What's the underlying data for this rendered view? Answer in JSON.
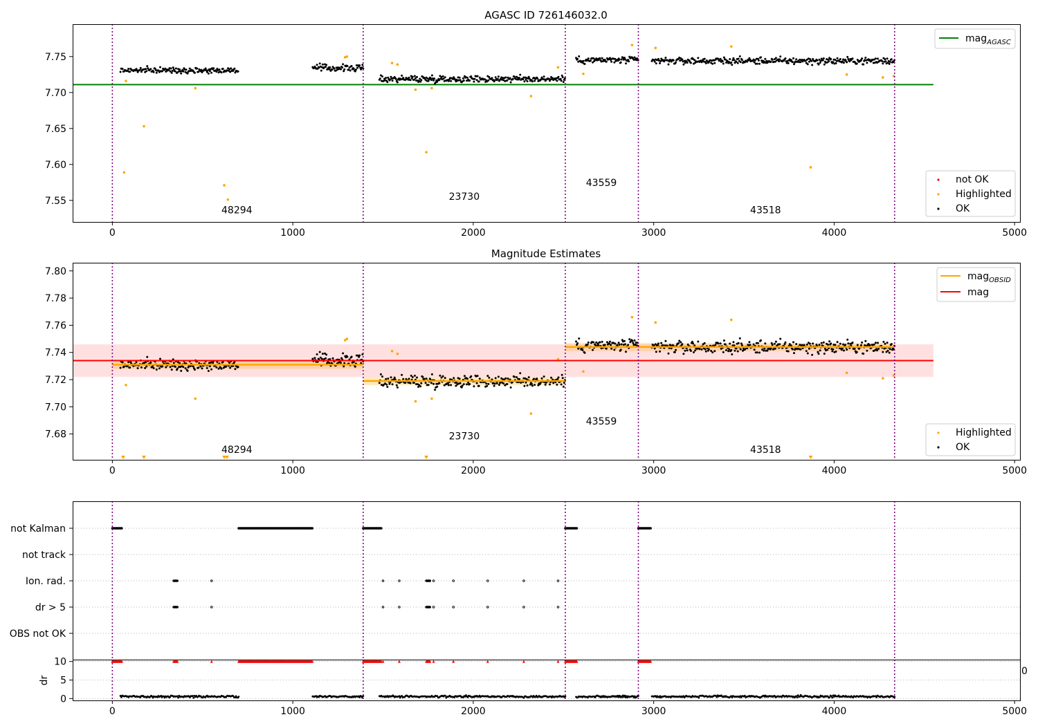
{
  "chart_data": [
    {
      "type": "scatter",
      "title": "AGASC ID 726146032.0",
      "xlabel": "",
      "ylabel": "",
      "xlim": [
        -220,
        5030
      ],
      "ylim": [
        7.52,
        7.795
      ],
      "xticks": [
        0,
        1000,
        2000,
        3000,
        4000,
        5000
      ],
      "yticks": [
        7.55,
        7.6,
        7.65,
        7.7,
        7.75
      ],
      "grid": false,
      "legend_line": {
        "label": "mag",
        "subscript": "AGASC",
        "color": "#008000",
        "position": "top-right"
      },
      "legend_points": {
        "position": "bottom-right",
        "entries": [
          {
            "label": "not OK",
            "color": "#ff0000"
          },
          {
            "label": "Highlighted",
            "color": "#ffa500"
          },
          {
            "label": "OK",
            "color": "#000000"
          }
        ]
      },
      "hline": {
        "name": "mag_AGASC",
        "y": 7.711,
        "x": [
          -220,
          4550
        ],
        "color": "#008000"
      },
      "obs_boundaries": [
        0,
        1390,
        2510,
        2915,
        4335
      ],
      "obs_labels": [
        {
          "text": "48294",
          "x": 690,
          "y": 7.532
        },
        {
          "text": "23730",
          "x": 1950,
          "y": 7.551
        },
        {
          "text": "43559",
          "x": 2710,
          "y": 7.57
        },
        {
          "text": "43518",
          "x": 3620,
          "y": 7.532
        }
      ],
      "ok_segments": [
        {
          "x0": 45,
          "x1": 700,
          "y": 7.731,
          "noise": 0.0035
        },
        {
          "x0": 1110,
          "x1": 1390,
          "y": 7.734,
          "noise": 0.0045
        },
        {
          "x0": 1480,
          "x1": 2510,
          "y": 7.719,
          "noise": 0.0045
        },
        {
          "x0": 2570,
          "x1": 2915,
          "y": 7.745,
          "noise": 0.0045
        },
        {
          "x0": 2990,
          "x1": 4335,
          "y": 7.744,
          "noise": 0.0045
        }
      ],
      "highlighted_points": [
        {
          "x": 65,
          "y": 7.589
        },
        {
          "x": 75,
          "y": 7.716
        },
        {
          "x": 175,
          "y": 7.653
        },
        {
          "x": 460,
          "y": 7.706
        },
        {
          "x": 620,
          "y": 7.571
        },
        {
          "x": 640,
          "y": 7.551
        },
        {
          "x": 1290,
          "y": 7.749
        },
        {
          "x": 1300,
          "y": 7.75
        },
        {
          "x": 1550,
          "y": 7.741
        },
        {
          "x": 1580,
          "y": 7.739
        },
        {
          "x": 1680,
          "y": 7.704
        },
        {
          "x": 1740,
          "y": 7.617
        },
        {
          "x": 1770,
          "y": 7.706
        },
        {
          "x": 2320,
          "y": 7.695
        },
        {
          "x": 2470,
          "y": 7.735
        },
        {
          "x": 2610,
          "y": 7.726
        },
        {
          "x": 2880,
          "y": 7.766
        },
        {
          "x": 3010,
          "y": 7.762
        },
        {
          "x": 3430,
          "y": 7.764
        },
        {
          "x": 3870,
          "y": 7.596
        },
        {
          "x": 4070,
          "y": 7.725
        },
        {
          "x": 4270,
          "y": 7.721
        },
        {
          "x": 4330,
          "y": 7.723
        }
      ]
    },
    {
      "type": "scatter",
      "title": "Magnitude Estimates",
      "xlabel": "",
      "ylabel": "",
      "xlim": [
        -220,
        5030
      ],
      "ylim": [
        7.661,
        7.806
      ],
      "xticks": [
        0,
        1000,
        2000,
        3000,
        4000,
        5000
      ],
      "yticks": [
        7.68,
        7.7,
        7.72,
        7.74,
        7.76,
        7.78,
        7.8
      ],
      "grid": false,
      "legend_lines": {
        "position": "top-right",
        "entries": [
          {
            "label": "mag",
            "subscript": "OBSID",
            "color": "#ffa500"
          },
          {
            "label": "mag",
            "subscript": "",
            "color": "#ff0000"
          }
        ]
      },
      "legend_points": {
        "position": "bottom-right",
        "entries": [
          {
            "label": "Highlighted",
            "color": "#ffa500"
          },
          {
            "label": "OK",
            "color": "#000000"
          }
        ]
      },
      "mag": {
        "y": 7.734,
        "band": [
          7.722,
          7.746
        ],
        "x": [
          -220,
          4550
        ],
        "color": "#ff0000"
      },
      "mag_obsid": [
        {
          "x0": 0,
          "x1": 1390,
          "y": 7.731,
          "band": [
            7.728,
            7.734
          ]
        },
        {
          "x0": 1390,
          "x1": 2510,
          "y": 7.719,
          "band": [
            7.716,
            7.722
          ]
        },
        {
          "x0": 2510,
          "x1": 4335,
          "y": 7.744,
          "band": [
            7.741,
            7.747
          ]
        }
      ],
      "obs_labels": [
        {
          "text": "48294",
          "x": 690,
          "y": 7.666
        },
        {
          "text": "23730",
          "x": 1950,
          "y": 7.676
        },
        {
          "text": "43559",
          "x": 2710,
          "y": 7.687
        },
        {
          "text": "43518",
          "x": 3620,
          "y": 7.666
        }
      ],
      "offscale_markers_x": [
        60,
        175,
        620,
        635,
        1740,
        3870
      ]
    },
    {
      "type": "scatter",
      "title": "",
      "xlabel": "",
      "ylabel": "",
      "xlim": [
        -220,
        5030
      ],
      "categories": [
        "not Kalman",
        "not track",
        "Ion. rad.",
        "dr > 5",
        "OBS not OK"
      ],
      "flag_ranges": {
        "not Kalman": [
          [
            0,
            55
          ],
          [
            700,
            1110
          ],
          [
            1390,
            1490
          ],
          [
            2510,
            2575
          ],
          [
            2915,
            2985
          ]
        ],
        "Ion. rad.": [
          [
            340,
            360
          ],
          [
            1500,
            1500
          ],
          [
            1590,
            1590
          ],
          [
            1740,
            1760
          ],
          [
            1780,
            1780
          ],
          [
            1890,
            1890
          ],
          [
            2080,
            2080
          ],
          [
            2280,
            2280
          ],
          [
            2470,
            2470
          ]
        ],
        "dr > 5": [
          [
            340,
            360
          ],
          [
            550,
            550
          ],
          [
            1500,
            1500
          ],
          [
            1590,
            1590
          ],
          [
            1740,
            1760
          ],
          [
            1780,
            1780
          ],
          [
            1890,
            1890
          ],
          [
            2080,
            2080
          ],
          [
            2280,
            2280
          ],
          [
            2470,
            2470
          ]
        ]
      },
      "single_flags": {
        "Ion. rad.": [
          550
        ]
      },
      "grid": true
    },
    {
      "type": "scatter",
      "title": "",
      "xlabel": "",
      "ylabel": "dr",
      "xlim": [
        -220,
        5030
      ],
      "ylim": [
        -0.5,
        10.5
      ],
      "xticks": [
        0,
        1000,
        2000,
        3000,
        4000,
        5000
      ],
      "yticks": [
        0,
        5,
        10
      ],
      "grid": true,
      "overflow_value": 10,
      "overflow_ranges": [
        [
          0,
          55
        ],
        [
          340,
          360
        ],
        [
          550,
          550
        ],
        [
          700,
          1110
        ],
        [
          1390,
          1490
        ],
        [
          1500,
          1500
        ],
        [
          1590,
          1590
        ],
        [
          1740,
          1760
        ],
        [
          1780,
          1780
        ],
        [
          1890,
          1890
        ],
        [
          2080,
          2080
        ],
        [
          2280,
          2280
        ],
        [
          2470,
          2470
        ],
        [
          2510,
          2575
        ],
        [
          2915,
          2985
        ]
      ],
      "dr_segments": [
        [
          45,
          700
        ],
        [
          1110,
          1390
        ],
        [
          1480,
          2510
        ],
        [
          2570,
          2915
        ],
        [
          2990,
          4335
        ]
      ]
    }
  ],
  "stray_tick_label": "0",
  "colors": {
    "ok": "#000000",
    "highlighted": "#ffa500",
    "not_ok": "#ff0000",
    "boundary": "#800080",
    "agasc": "#008000",
    "grid": "#b0b0b0"
  }
}
